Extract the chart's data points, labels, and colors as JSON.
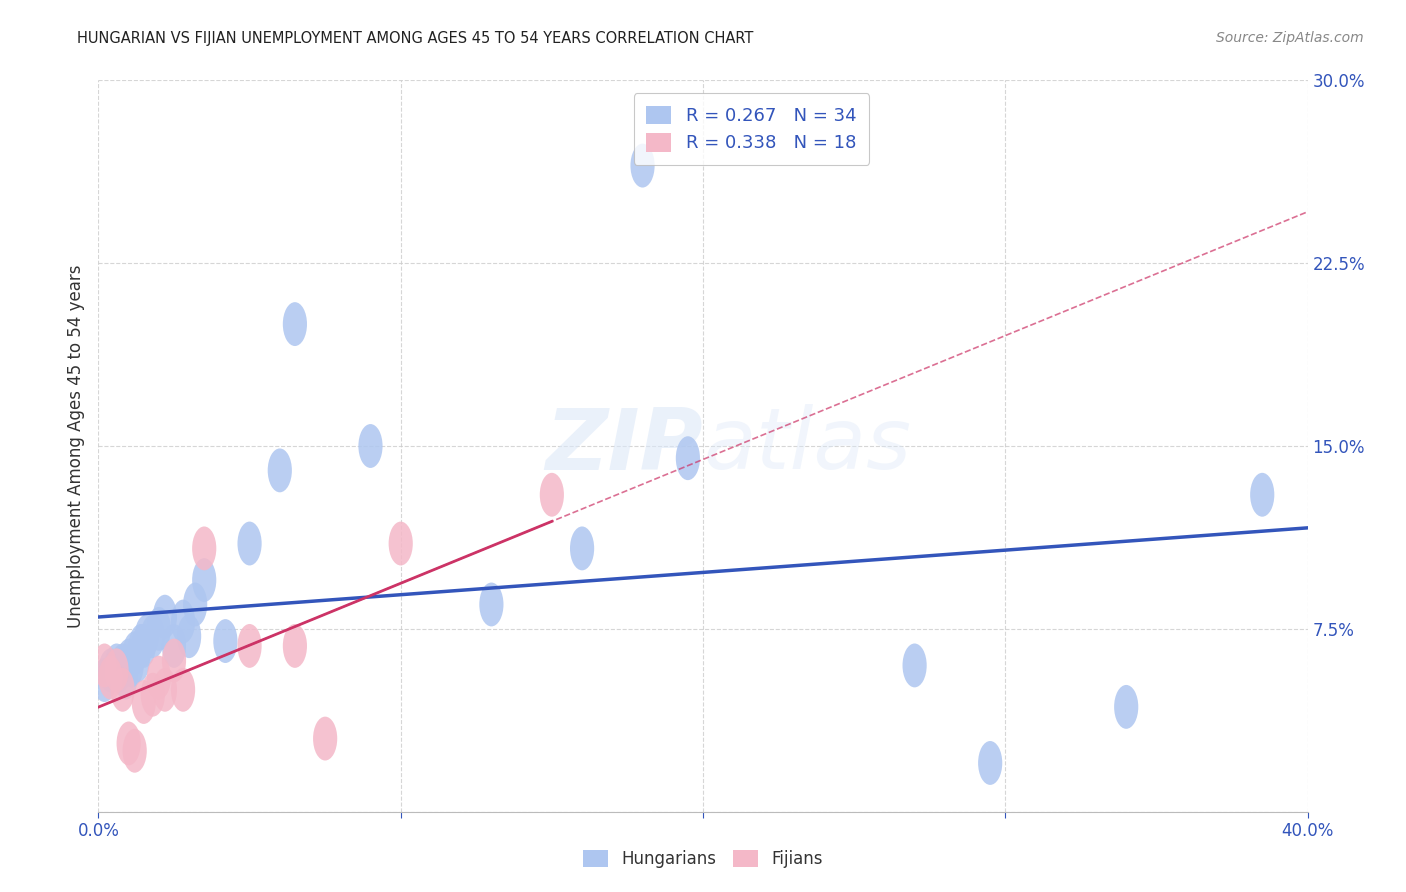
{
  "title": "HUNGARIAN VS FIJIAN UNEMPLOYMENT AMONG AGES 45 TO 54 YEARS CORRELATION CHART",
  "source": "Source: ZipAtlas.com",
  "ylabel": "Unemployment Among Ages 45 to 54 years",
  "xlim": [
    0.0,
    0.4
  ],
  "ylim": [
    0.0,
    0.3
  ],
  "xticks": [
    0.0,
    0.1,
    0.2,
    0.3,
    0.4
  ],
  "yticks": [
    0.0,
    0.075,
    0.15,
    0.225,
    0.3
  ],
  "xticklabels": [
    "0.0%",
    "",
    "",
    "",
    "40.0%"
  ],
  "yticklabels": [
    "",
    "7.5%",
    "15.0%",
    "22.5%",
    "30.0%"
  ],
  "hun_color": "#aec6f0",
  "fij_color": "#f4b8c8",
  "hun_line_color": "#3355bb",
  "fij_line_color": "#cc3366",
  "legend_text_color": "#3355bb",
  "hun_R": 0.267,
  "hun_N": 34,
  "fij_R": 0.338,
  "fij_N": 18,
  "hun_x": [
    0.002,
    0.004,
    0.006,
    0.007,
    0.008,
    0.009,
    0.01,
    0.011,
    0.012,
    0.013,
    0.014,
    0.015,
    0.016,
    0.018,
    0.02,
    0.022,
    0.025,
    0.028,
    0.03,
    0.032,
    0.035,
    0.042,
    0.05,
    0.06,
    0.065,
    0.09,
    0.13,
    0.16,
    0.18,
    0.195,
    0.27,
    0.295,
    0.34,
    0.385
  ],
  "hun_y": [
    0.054,
    0.058,
    0.06,
    0.058,
    0.06,
    0.055,
    0.062,
    0.06,
    0.065,
    0.062,
    0.068,
    0.068,
    0.072,
    0.072,
    0.075,
    0.08,
    0.068,
    0.078,
    0.072,
    0.085,
    0.095,
    0.07,
    0.11,
    0.14,
    0.2,
    0.15,
    0.085,
    0.108,
    0.265,
    0.145,
    0.06,
    0.02,
    0.043,
    0.13
  ],
  "fij_x": [
    0.002,
    0.004,
    0.006,
    0.008,
    0.01,
    0.012,
    0.015,
    0.018,
    0.02,
    0.022,
    0.025,
    0.028,
    0.035,
    0.05,
    0.065,
    0.075,
    0.1,
    0.15
  ],
  "fij_y": [
    0.06,
    0.055,
    0.058,
    0.05,
    0.028,
    0.025,
    0.045,
    0.048,
    0.055,
    0.05,
    0.062,
    0.05,
    0.108,
    0.068,
    0.068,
    0.03,
    0.11,
    0.13
  ],
  "watermark_zip": "ZIP",
  "watermark_atlas": "atlas",
  "background_color": "#ffffff",
  "grid_color": "#cccccc"
}
